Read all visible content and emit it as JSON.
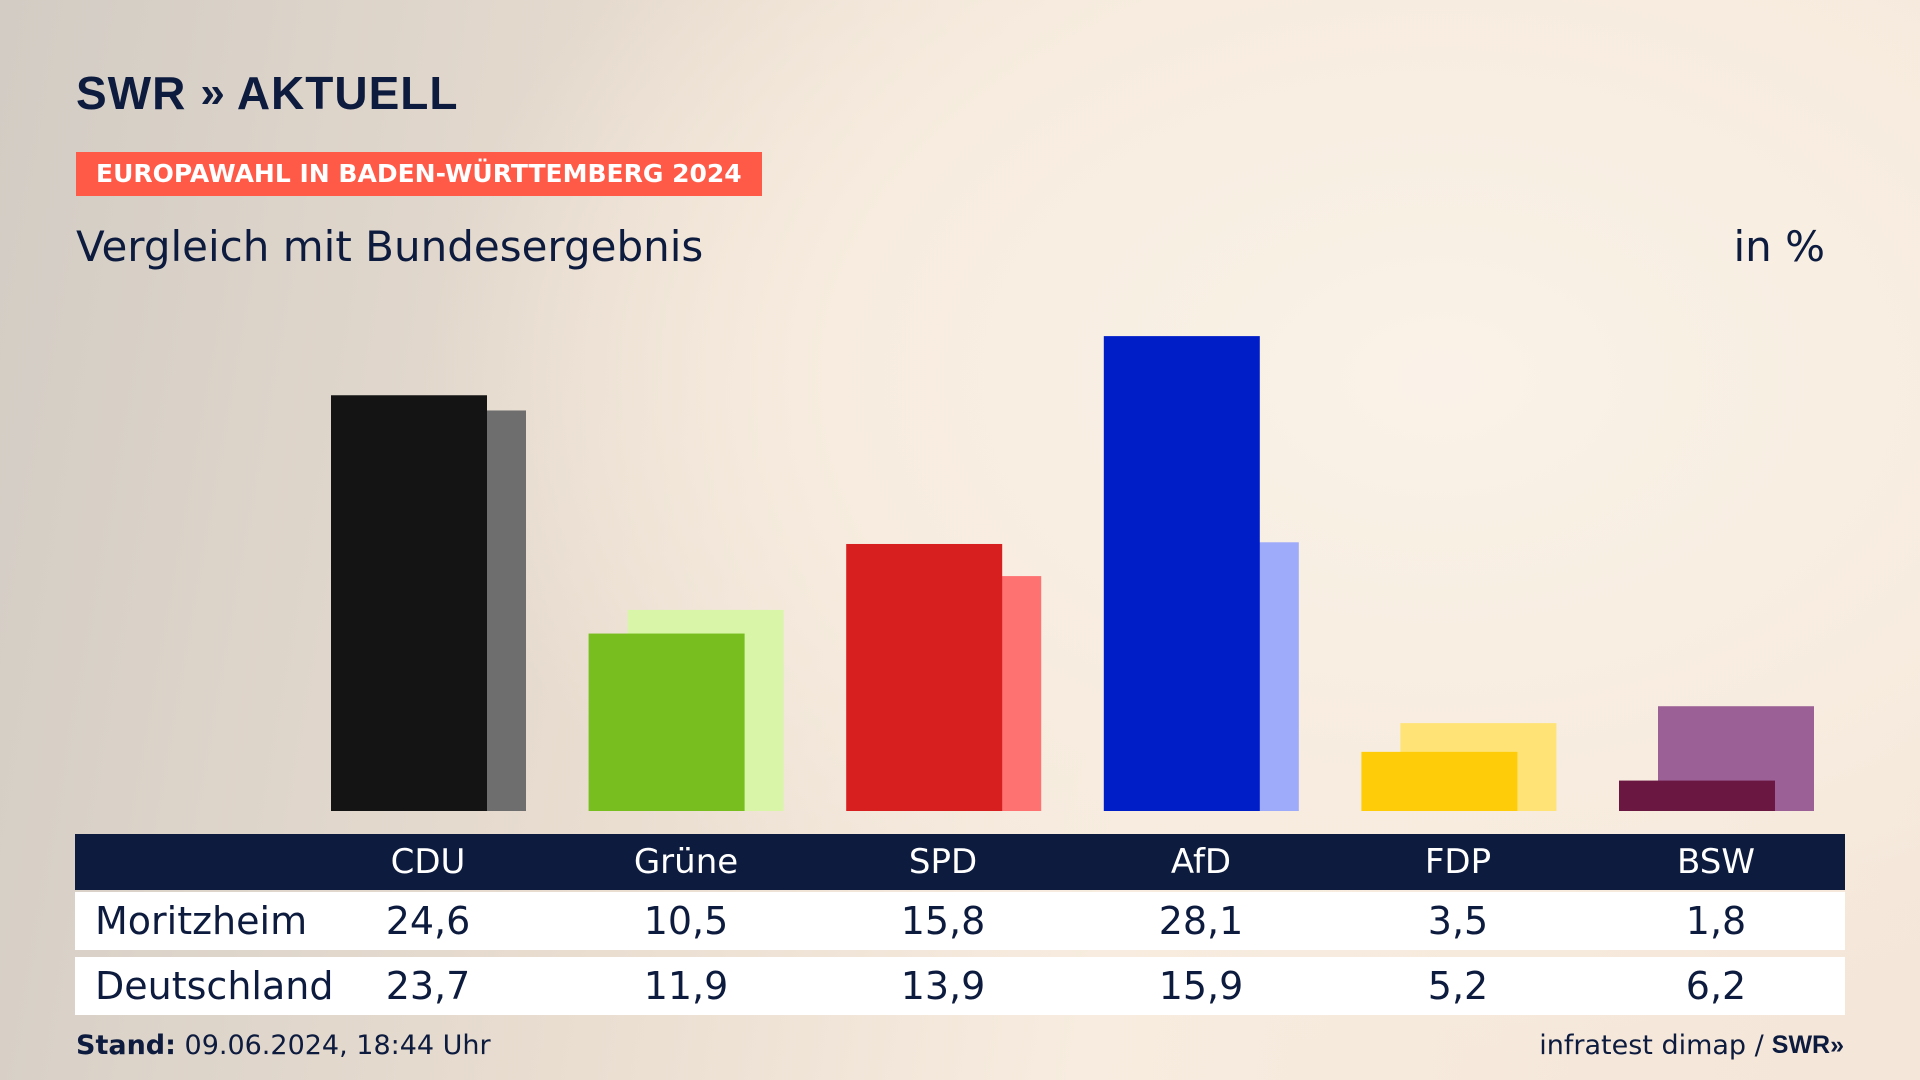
{
  "brand": {
    "name": "SWR",
    "chevrons": "»",
    "suffix": "AKTUELL"
  },
  "tag": "EUROPAWAHL IN BADEN-WÜRTTEMBERG 2024",
  "subtitle": "Vergleich mit Bundesergebnis",
  "unit_label": "in %",
  "table": {
    "rows": [
      {
        "label": "Moritzheim",
        "values": [
          "24,6",
          "10,5",
          "15,8",
          "28,1",
          "3,5",
          "1,8"
        ]
      },
      {
        "label": "Deutschland",
        "values": [
          "23,7",
          "11,9",
          "13,9",
          "15,9",
          "5,2",
          "6,2"
        ]
      }
    ]
  },
  "footer": {
    "stand_label": "Stand:",
    "stand_value": "09.06.2024, 18:44 Uhr",
    "source": "infratest dimap /",
    "source_brand": "SWR",
    "source_brand_chev": "»"
  },
  "chart_data": {
    "type": "bar",
    "categories": [
      "CDU",
      "Grüne",
      "SPD",
      "AfD",
      "FDP",
      "BSW"
    ],
    "series": [
      {
        "name": "Moritzheim",
        "values": [
          24.6,
          10.5,
          15.8,
          28.1,
          3.5,
          1.8
        ]
      },
      {
        "name": "Deutschland",
        "values": [
          23.7,
          11.9,
          13.9,
          15.9,
          5.2,
          6.2
        ]
      }
    ],
    "colors": {
      "primary": [
        "#141414",
        "#78be1e",
        "#d71f1f",
        "#001ec8",
        "#ffcc0a",
        "#6a1842"
      ],
      "secondary": [
        "#6e6e6e",
        "#d8f5a8",
        "#ff7272",
        "#9eaafa",
        "#ffe376",
        "#9b6096"
      ]
    },
    "ylim": [
      0,
      30
    ]
  }
}
